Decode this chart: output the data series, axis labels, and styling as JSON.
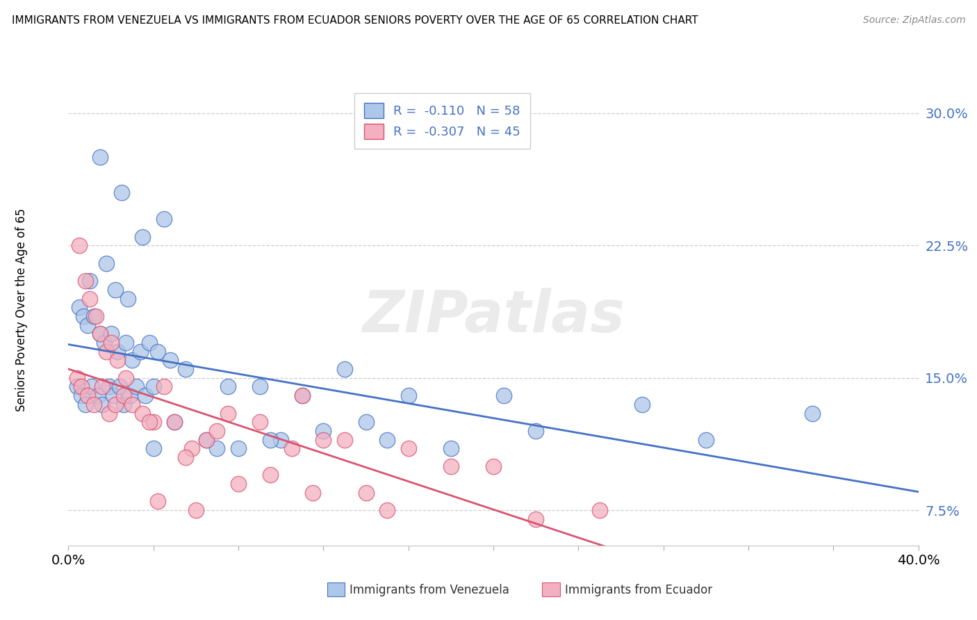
{
  "title": "IMMIGRANTS FROM VENEZUELA VS IMMIGRANTS FROM ECUADOR SENIORS POVERTY OVER THE AGE OF 65 CORRELATION CHART",
  "source": "Source: ZipAtlas.com",
  "ylabel": "Seniors Poverty Over the Age of 65",
  "legend_label1": "Immigrants from Venezuela",
  "legend_label2": "Immigrants from Ecuador",
  "R1": -0.11,
  "N1": 58,
  "R2": -0.307,
  "N2": 45,
  "color_venezuela": "#aec6e8",
  "color_ecuador": "#f2b0c0",
  "line_color_venezuela": "#4472c4",
  "line_color_ecuador": "#d9536f",
  "watermark_text": "ZIPatlas",
  "xlim": [
    0.0,
    40.0
  ],
  "ylim": [
    5.5,
    31.5
  ],
  "yticks": [
    7.5,
    15.0,
    22.5,
    30.0
  ],
  "yticklabels": [
    "7.5%",
    "15.0%",
    "22.5%",
    "30.0%"
  ],
  "venezuela_x": [
    1.5,
    2.5,
    3.5,
    4.5,
    1.0,
    1.8,
    2.2,
    2.8,
    0.5,
    0.7,
    0.9,
    1.2,
    1.5,
    1.7,
    2.0,
    2.3,
    2.7,
    3.0,
    3.4,
    3.8,
    4.2,
    4.8,
    0.4,
    0.6,
    0.8,
    1.1,
    1.4,
    1.6,
    1.9,
    2.1,
    2.4,
    2.6,
    2.9,
    3.2,
    3.6,
    4.0,
    5.5,
    7.5,
    9.0,
    11.0,
    13.0,
    16.0,
    20.5,
    27.0,
    35.0,
    6.5,
    8.0,
    10.0,
    12.0,
    15.0,
    18.0,
    22.0,
    30.0,
    4.0,
    5.0,
    7.0,
    9.5,
    14.0
  ],
  "venezuela_y": [
    27.5,
    25.5,
    23.0,
    24.0,
    20.5,
    21.5,
    20.0,
    19.5,
    19.0,
    18.5,
    18.0,
    18.5,
    17.5,
    17.0,
    17.5,
    16.5,
    17.0,
    16.0,
    16.5,
    17.0,
    16.5,
    16.0,
    14.5,
    14.0,
    13.5,
    14.5,
    14.0,
    13.5,
    14.5,
    14.0,
    14.5,
    13.5,
    14.0,
    14.5,
    14.0,
    14.5,
    15.5,
    14.5,
    14.5,
    14.0,
    15.5,
    14.0,
    14.0,
    13.5,
    13.0,
    11.5,
    11.0,
    11.5,
    12.0,
    11.5,
    11.0,
    12.0,
    11.5,
    11.0,
    12.5,
    11.0,
    11.5,
    12.5
  ],
  "ecuador_x": [
    0.5,
    0.8,
    1.0,
    1.3,
    1.5,
    1.8,
    2.0,
    2.3,
    2.7,
    0.4,
    0.6,
    0.9,
    1.2,
    1.6,
    1.9,
    2.2,
    2.6,
    3.0,
    3.5,
    4.0,
    4.5,
    5.0,
    5.8,
    3.8,
    6.5,
    7.5,
    9.0,
    11.0,
    13.0,
    16.0,
    20.0,
    8.0,
    10.5,
    14.0,
    18.0,
    25.0,
    5.5,
    7.0,
    12.0,
    15.0,
    22.0,
    4.2,
    6.0,
    9.5,
    11.5
  ],
  "ecuador_y": [
    22.5,
    20.5,
    19.5,
    18.5,
    17.5,
    16.5,
    17.0,
    16.0,
    15.0,
    15.0,
    14.5,
    14.0,
    13.5,
    14.5,
    13.0,
    13.5,
    14.0,
    13.5,
    13.0,
    12.5,
    14.5,
    12.5,
    11.0,
    12.5,
    11.5,
    13.0,
    12.5,
    14.0,
    11.5,
    11.0,
    10.0,
    9.0,
    11.0,
    8.5,
    10.0,
    7.5,
    10.5,
    12.0,
    11.5,
    7.5,
    7.0,
    8.0,
    7.5,
    9.5,
    8.5
  ]
}
